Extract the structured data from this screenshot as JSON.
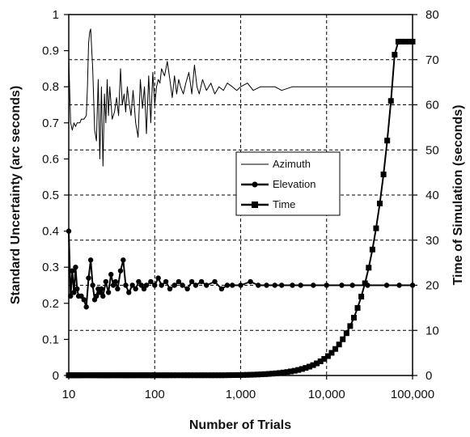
{
  "chart_data": {
    "type": "line",
    "x_scale": "log",
    "xlim": [
      10,
      100000
    ],
    "xlabel": "Number of Trials",
    "x_ticks": [
      {
        "value": 10,
        "label": "10"
      },
      {
        "value": 100,
        "label": "100"
      },
      {
        "value": 1000,
        "label": "1,000"
      },
      {
        "value": 10000,
        "label": "10,000"
      },
      {
        "value": 100000,
        "label": "100,000"
      }
    ],
    "ylabel": "Standard Uncertainty (arc seconds)",
    "ylim": [
      0,
      1
    ],
    "y_ticks": [
      "0",
      "0.1",
      "0.2",
      "0.3",
      "0.4",
      "0.5",
      "0.6",
      "0.7",
      "0.8",
      "0.9",
      "1"
    ],
    "y2label": "Time of Simulation (seconds)",
    "y2lim": [
      0,
      80
    ],
    "y2_ticks": [
      "0",
      "10",
      "20",
      "30",
      "40",
      "50",
      "60",
      "70",
      "80"
    ],
    "grid": true,
    "legend_position": "center",
    "series": [
      {
        "name": "Azimuth",
        "axis": "left",
        "marker": "none",
        "x": [
          10,
          10.5,
          11,
          11.5,
          12,
          12.5,
          13,
          13.5,
          14,
          15,
          16,
          16.5,
          17,
          17.5,
          18,
          19,
          20,
          21,
          22,
          23,
          24,
          25,
          26,
          27,
          28,
          29,
          30,
          32,
          34,
          36,
          38,
          40,
          42,
          44,
          46,
          48,
          50,
          53,
          56,
          60,
          64,
          68,
          72,
          76,
          80,
          85,
          90,
          95,
          100,
          105,
          110,
          115,
          120,
          130,
          140,
          150,
          160,
          170,
          180,
          190,
          200,
          215,
          230,
          250,
          270,
          290,
          310,
          330,
          360,
          400,
          450,
          500,
          560,
          630,
          700,
          800,
          900,
          1000,
          1200,
          1400,
          1700,
          2000,
          2500,
          3000,
          4000,
          5000,
          6000,
          8000,
          10000,
          15000,
          20000,
          30000,
          50000,
          70000,
          100000
        ],
        "y": [
          0.88,
          0.7,
          0.68,
          0.7,
          0.69,
          0.7,
          0.7,
          0.7,
          0.71,
          0.71,
          0.72,
          0.8,
          0.92,
          0.95,
          0.96,
          0.85,
          0.68,
          0.65,
          0.82,
          0.6,
          0.8,
          0.58,
          0.78,
          0.7,
          0.82,
          0.72,
          0.8,
          0.71,
          0.73,
          0.77,
          0.72,
          0.85,
          0.75,
          0.78,
          0.73,
          0.8,
          0.76,
          0.72,
          0.79,
          0.7,
          0.66,
          0.82,
          0.74,
          0.8,
          0.67,
          0.83,
          0.7,
          0.84,
          0.75,
          0.8,
          0.82,
          0.81,
          0.85,
          0.83,
          0.87,
          0.82,
          0.77,
          0.83,
          0.78,
          0.82,
          0.8,
          0.78,
          0.81,
          0.84,
          0.78,
          0.86,
          0.8,
          0.78,
          0.82,
          0.79,
          0.81,
          0.78,
          0.8,
          0.79,
          0.81,
          0.8,
          0.79,
          0.8,
          0.81,
          0.79,
          0.8,
          0.8,
          0.8,
          0.79,
          0.8,
          0.8,
          0.8,
          0.8,
          0.8,
          0.8,
          0.8,
          0.8,
          0.8,
          0.8,
          0.8
        ]
      },
      {
        "name": "Elevation",
        "axis": "left",
        "marker": "circle",
        "x": [
          10,
          10.5,
          11,
          11.5,
          12,
          12.5,
          13,
          14,
          15,
          16,
          17,
          18,
          19,
          20,
          21,
          22,
          23,
          24,
          25,
          27,
          29,
          31,
          33,
          35,
          37,
          40,
          43,
          46,
          50,
          55,
          60,
          65,
          70,
          75,
          80,
          90,
          100,
          110,
          120,
          135,
          150,
          170,
          190,
          210,
          240,
          270,
          300,
          350,
          400,
          500,
          600,
          700,
          800,
          1000,
          1300,
          1600,
          2000,
          2500,
          3000,
          4000,
          5000,
          7000,
          10000,
          15000,
          20000,
          30000,
          50000,
          70000,
          100000
        ],
        "y": [
          0.4,
          0.22,
          0.29,
          0.23,
          0.3,
          0.24,
          0.22,
          0.22,
          0.21,
          0.19,
          0.27,
          0.32,
          0.25,
          0.21,
          0.22,
          0.24,
          0.23,
          0.24,
          0.22,
          0.26,
          0.23,
          0.28,
          0.25,
          0.26,
          0.24,
          0.29,
          0.32,
          0.25,
          0.23,
          0.25,
          0.24,
          0.26,
          0.25,
          0.24,
          0.25,
          0.26,
          0.25,
          0.27,
          0.25,
          0.26,
          0.24,
          0.25,
          0.26,
          0.25,
          0.24,
          0.26,
          0.25,
          0.26,
          0.25,
          0.26,
          0.24,
          0.25,
          0.25,
          0.25,
          0.26,
          0.25,
          0.25,
          0.25,
          0.25,
          0.25,
          0.25,
          0.25,
          0.25,
          0.25,
          0.25,
          0.25,
          0.25,
          0.25,
          0.25
        ]
      },
      {
        "name": "Time",
        "axis": "right",
        "marker": "square",
        "x": [
          10,
          10.5,
          11,
          11.5,
          12,
          12.5,
          13,
          13.5,
          14,
          15,
          16,
          17,
          18,
          19,
          20,
          21,
          22,
          23,
          24,
          25,
          26,
          27,
          28,
          29,
          30,
          32,
          34,
          36,
          38,
          40,
          42,
          44,
          46,
          48,
          50,
          53,
          56,
          60,
          64,
          68,
          72,
          76,
          80,
          85,
          90,
          95,
          100,
          110,
          120,
          130,
          140,
          150,
          165,
          180,
          200,
          220,
          240,
          260,
          290,
          320,
          350,
          380,
          420,
          460,
          500,
          550,
          600,
          660,
          730,
          800,
          880,
          970,
          1070,
          1180,
          1300,
          1430,
          1580,
          1740,
          1920,
          2120,
          2340,
          2580,
          2850,
          3150,
          3480,
          3840,
          4240,
          4680,
          5170,
          5710,
          6300,
          6960,
          7690,
          8490,
          9380,
          10360,
          11440,
          12640,
          13960,
          15420,
          17030,
          18800,
          20760,
          22930,
          25320,
          27960,
          30880,
          34100,
          37660,
          41590,
          45930,
          50720,
          56010,
          61860,
          68310,
          75440,
          83320,
          92010,
          100000
        ],
        "y": [
          0.05,
          0.05,
          0.05,
          0.05,
          0.05,
          0.05,
          0.05,
          0.05,
          0.05,
          0.05,
          0.05,
          0.05,
          0.05,
          0.05,
          0.05,
          0.05,
          0.05,
          0.05,
          0.05,
          0.05,
          0.05,
          0.05,
          0.05,
          0.05,
          0.05,
          0.05,
          0.05,
          0.05,
          0.05,
          0.05,
          0.05,
          0.05,
          0.05,
          0.05,
          0.05,
          0.05,
          0.05,
          0.05,
          0.05,
          0.05,
          0.05,
          0.05,
          0.05,
          0.05,
          0.05,
          0.05,
          0.05,
          0.05,
          0.05,
          0.05,
          0.05,
          0.05,
          0.05,
          0.05,
          0.05,
          0.05,
          0.05,
          0.05,
          0.05,
          0.05,
          0.05,
          0.05,
          0.05,
          0.05,
          0.05,
          0.05,
          0.05,
          0.06,
          0.07,
          0.08,
          0.09,
          0.1,
          0.12,
          0.14,
          0.16,
          0.19,
          0.22,
          0.26,
          0.3,
          0.35,
          0.41,
          0.48,
          0.56,
          0.66,
          0.77,
          0.9,
          1.05,
          1.23,
          1.44,
          1.68,
          1.97,
          2.3,
          2.69,
          3.15,
          3.68,
          4.3,
          5.03,
          5.88,
          6.87,
          8.03,
          9.38,
          10.96,
          12.81,
          14.97,
          17.49,
          20.44,
          23.89,
          27.92,
          32.63,
          38.13,
          44.56,
          52.07,
          60.85,
          71.1,
          74.0,
          74.0,
          74.0,
          74.0,
          74.0
        ]
      }
    ]
  }
}
